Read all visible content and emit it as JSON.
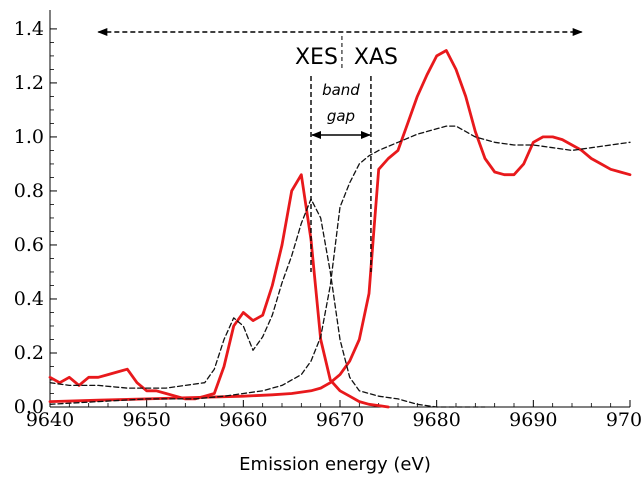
{
  "chart_data": {
    "type": "line",
    "title": "",
    "xlabel": "Emission energy (eV)",
    "ylabel": "",
    "xlim": [
      9640,
      9700
    ],
    "ylim": [
      0,
      1.4
    ],
    "x_ticks": [
      9640,
      9650,
      9660,
      9670,
      9680,
      9690,
      9700
    ],
    "y_ticks": [
      0.0,
      0.2,
      0.4,
      0.6,
      0.8,
      1.0,
      1.2,
      1.4
    ],
    "y_tick_labels": [
      "0.0",
      "0.2",
      "0.4",
      "0.6",
      "0.8",
      "1.0",
      "1.2",
      "1.4"
    ],
    "grid": false,
    "annotations": {
      "xes": "XES",
      "xas": "XAS",
      "band": "band",
      "gap": "gap",
      "range_arrow": [
        9645,
        9695
      ],
      "xes_xas_divider": 9670.2,
      "band_gap_edges": [
        9667.0,
        9673.2
      ]
    },
    "series": [
      {
        "style": "solid",
        "color": "#e8191c",
        "x": [
          9640,
          9641,
          9642,
          9643,
          9644,
          9645,
          9646,
          9647,
          9648,
          9649,
          9650,
          9651,
          9652,
          9653,
          9654,
          9655,
          9656,
          9657,
          9658,
          9659,
          9660,
          9661,
          9662,
          9663,
          9664,
          9665,
          9666,
          9667,
          9668,
          9669,
          9670,
          9671,
          9672,
          9673,
          9674,
          9675
        ],
        "y": [
          0.11,
          0.09,
          0.11,
          0.08,
          0.11,
          0.11,
          0.12,
          0.13,
          0.14,
          0.09,
          0.06,
          0.06,
          0.05,
          0.04,
          0.03,
          0.03,
          0.04,
          0.05,
          0.15,
          0.3,
          0.35,
          0.32,
          0.34,
          0.45,
          0.6,
          0.8,
          0.86,
          0.62,
          0.25,
          0.1,
          0.06,
          0.04,
          0.02,
          0.01,
          0.005,
          0.0
        ]
      },
      {
        "style": "solid",
        "color": "#e8191c",
        "x": [
          9640,
          9645,
          9650,
          9655,
          9660,
          9663,
          9665,
          9667,
          9668,
          9669,
          9670,
          9671,
          9672,
          9673,
          9673.5,
          9674,
          9675,
          9676,
          9677,
          9678,
          9679,
          9680,
          9681,
          9682,
          9683,
          9684,
          9685,
          9686,
          9687,
          9688,
          9689,
          9690,
          9691,
          9692,
          9693,
          9694,
          9695,
          9696,
          9697,
          9698,
          9699,
          9700
        ],
        "y": [
          0.02,
          0.025,
          0.03,
          0.035,
          0.04,
          0.045,
          0.05,
          0.06,
          0.07,
          0.09,
          0.12,
          0.17,
          0.25,
          0.42,
          0.65,
          0.88,
          0.92,
          0.95,
          1.05,
          1.15,
          1.23,
          1.3,
          1.32,
          1.25,
          1.15,
          1.02,
          0.92,
          0.87,
          0.86,
          0.86,
          0.9,
          0.98,
          1.0,
          1.0,
          0.99,
          0.97,
          0.95,
          0.92,
          0.9,
          0.88,
          0.87,
          0.86
        ]
      },
      {
        "style": "dashed",
        "color": "#111111",
        "x": [
          9640,
          9642,
          9645,
          9648,
          9650,
          9652,
          9654,
          9656,
          9657,
          9658,
          9659,
          9660,
          9661,
          9662,
          9663,
          9664,
          9665,
          9666,
          9667,
          9668,
          9669,
          9670,
          9671,
          9672,
          9674,
          9676,
          9678,
          9680,
          9685
        ],
        "y": [
          0.09,
          0.08,
          0.08,
          0.07,
          0.07,
          0.07,
          0.08,
          0.09,
          0.14,
          0.25,
          0.33,
          0.3,
          0.21,
          0.26,
          0.34,
          0.46,
          0.56,
          0.68,
          0.77,
          0.7,
          0.5,
          0.25,
          0.11,
          0.06,
          0.04,
          0.03,
          0.01,
          0.0,
          0.0
        ]
      },
      {
        "style": "dashed",
        "color": "#111111",
        "x": [
          9640,
          9645,
          9650,
          9655,
          9658,
          9660,
          9662,
          9664,
          9666,
          9667,
          9668,
          9669,
          9670,
          9671,
          9672,
          9673,
          9674,
          9676,
          9678,
          9680,
          9681,
          9682,
          9684,
          9686,
          9688,
          9690,
          9692,
          9694,
          9696,
          9698,
          9700
        ],
        "y": [
          0.01,
          0.02,
          0.03,
          0.03,
          0.04,
          0.05,
          0.06,
          0.08,
          0.12,
          0.17,
          0.26,
          0.45,
          0.74,
          0.83,
          0.9,
          0.93,
          0.95,
          0.98,
          1.01,
          1.03,
          1.04,
          1.04,
          1.0,
          0.98,
          0.97,
          0.97,
          0.96,
          0.95,
          0.96,
          0.97,
          0.98
        ]
      }
    ]
  }
}
